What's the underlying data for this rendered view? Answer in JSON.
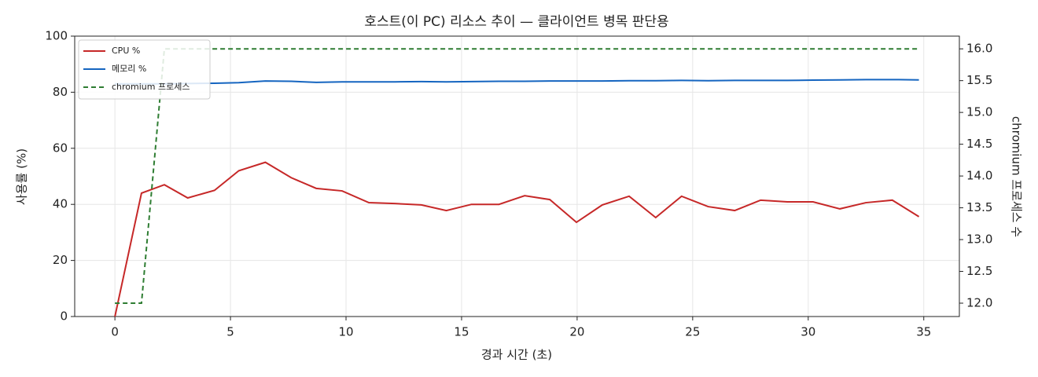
{
  "chart_data": {
    "type": "line",
    "title": "호스트(이 PC) 리소스 추이 — 클라이언트 병목 판단용",
    "x_label": "경과 시간 (초)",
    "y_label": "사용률 (%)",
    "y2_label": "chromium 프로세스 수",
    "x": [
      0,
      1.15,
      2.14,
      3.15,
      4.31,
      5.36,
      6.51,
      7.63,
      8.71,
      9.83,
      10.99,
      12.11,
      13.26,
      14.34,
      15.43,
      16.62,
      17.73,
      18.82,
      19.97,
      21.09,
      22.25,
      23.4,
      24.52,
      25.67,
      26.82,
      27.94,
      29.09,
      30.21,
      31.37,
      32.49,
      33.64,
      34.79
    ],
    "series": [
      {
        "name": "CPU %",
        "color": "#c62828",
        "values": [
          0,
          44,
          47,
          42.3,
          45,
          52,
          55,
          49.5,
          45.7,
          44.8,
          40.6,
          40.3,
          39.8,
          37.8,
          40,
          40,
          43.1,
          41.7,
          33.6,
          39.8,
          42.9,
          35.3,
          42.9,
          39.2,
          37.8,
          41.5,
          40.9,
          40.9,
          38.4,
          40.6,
          41.5,
          35.6
        ]
      },
      {
        "name": "메모리 %",
        "color": "#1565c0",
        "values": [
          83,
          83,
          83,
          83.1,
          83.2,
          83.4,
          84,
          83.9,
          83.5,
          83.7,
          83.7,
          83.7,
          83.8,
          83.7,
          83.8,
          83.9,
          83.9,
          84,
          84,
          84,
          84.1,
          84.1,
          84.2,
          84.1,
          84.2,
          84.2,
          84.2,
          84.3,
          84.4,
          84.5,
          84.5,
          84.4
        ]
      },
      {
        "name": "chromium 프로세스",
        "color": "#2e7d32",
        "axis": "y2",
        "dashed": true,
        "values": [
          12,
          12,
          16,
          16,
          16,
          16,
          16,
          16,
          16,
          16,
          16,
          16,
          16,
          16,
          16,
          16,
          16,
          16,
          16,
          16,
          16,
          16,
          16,
          16,
          16,
          16,
          16,
          16,
          16,
          16,
          16,
          16
        ]
      }
    ],
    "xlim": [
      -1.74,
      36.54
    ],
    "xticks": [
      0,
      5,
      10,
      15,
      20,
      25,
      30,
      35
    ],
    "ylim": [
      0,
      100
    ],
    "yticks": [
      0,
      20,
      40,
      60,
      80,
      100
    ],
    "y2lim": [
      11.79,
      16.2
    ],
    "y2ticks": [
      {
        "value": 12,
        "label": "12.0"
      },
      12.5,
      {
        "value": 13,
        "label": "13.0"
      },
      13.5,
      {
        "value": 14,
        "label": "14.0"
      },
      14.5,
      {
        "value": 15,
        "label": "15.0"
      },
      15.5,
      {
        "value": 16,
        "label": "16.0"
      }
    ],
    "grid": true,
    "legend": "upper left"
  }
}
